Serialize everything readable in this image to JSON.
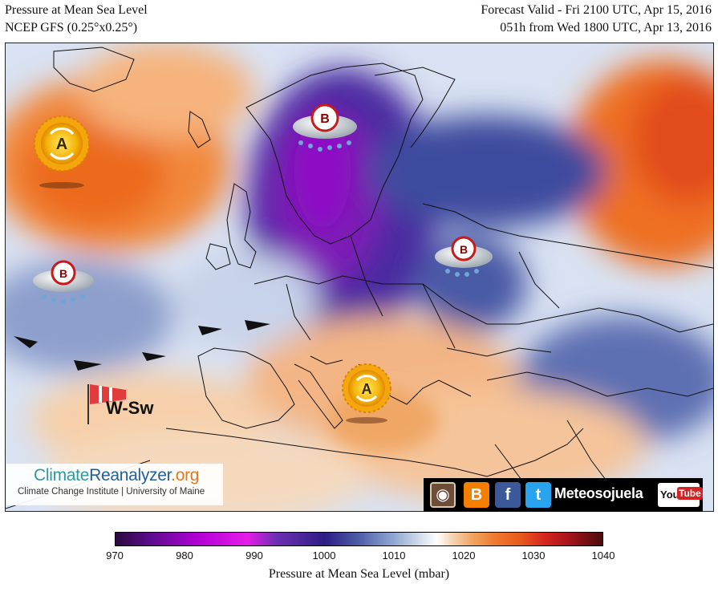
{
  "header": {
    "title_left": "Pressure at Mean Sea Level",
    "model_left": "NCEP GFS (0.25°x0.25°)",
    "valid_right": "Forecast Valid - Fri 2100 UTC, Apr 15, 2016",
    "run_right": "051h from Wed 1800 UTC, Apr 13, 2016"
  },
  "map": {
    "pressure_systems": [
      {
        "id": "high-atlantic-north",
        "letter": "A",
        "type": "high"
      },
      {
        "id": "low-scandinavia",
        "letter": "B",
        "type": "low"
      },
      {
        "id": "low-atlantic",
        "letter": "B",
        "type": "low"
      },
      {
        "id": "low-eastern-europe",
        "letter": "B",
        "type": "low"
      },
      {
        "id": "high-mediterranean",
        "letter": "A",
        "type": "high"
      }
    ],
    "wind_label": "W-Sw"
  },
  "credit": {
    "title_a": "Climate",
    "title_b": "Reanalyzer",
    "title_c": ".org",
    "subtitle": "Climate Change Institute | University of Maine"
  },
  "social": {
    "brand": "Meteosojuela",
    "youtube_you": "You",
    "youtube_tube": "Tube"
  },
  "colorbar": {
    "ticks": [
      "970",
      "980",
      "990",
      "1000",
      "1010",
      "1020",
      "1030",
      "1040"
    ],
    "label": "Pressure at Mean Sea Level (mbar)",
    "range_mbar": [
      970,
      1040
    ],
    "colors": [
      "#2a0a3e",
      "#b200d6",
      "#2c1e86",
      "#8fa6d2",
      "#ffffff",
      "#f0a766",
      "#d8261d",
      "#4a0b10"
    ]
  }
}
